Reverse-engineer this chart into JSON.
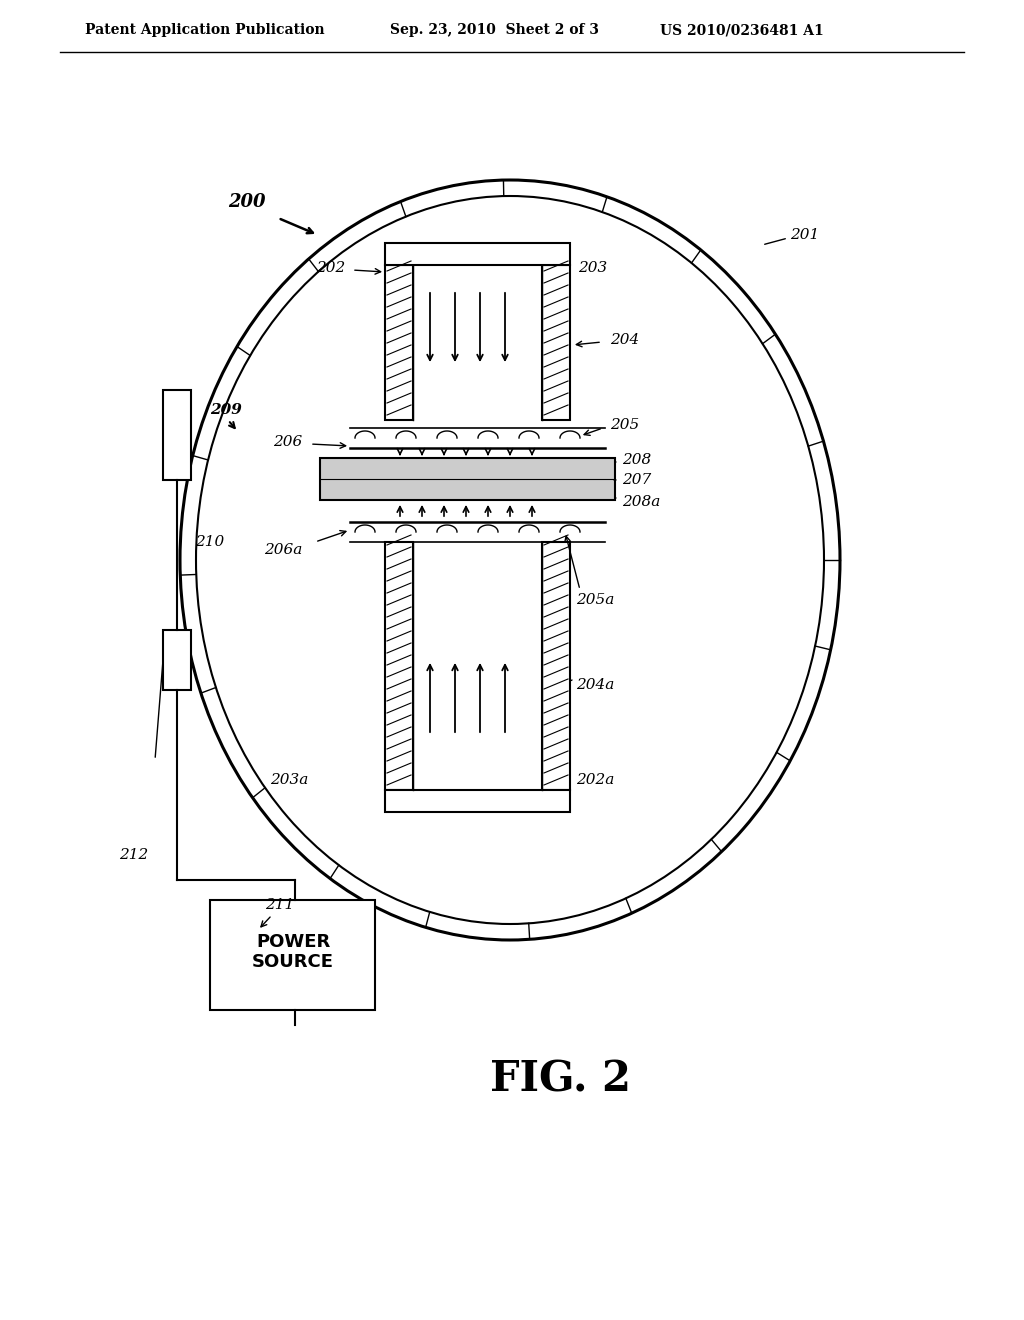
{
  "bg_color": "#ffffff",
  "line_color": "#000000",
  "header_left": "Patent Application Publication",
  "header_mid": "Sep. 23, 2010  Sheet 2 of 3",
  "header_right": "US 2010/0236481 A1",
  "fig_label": "FIG. 2",
  "label_200": "200",
  "label_201": "201",
  "label_202": "202",
  "label_203": "203",
  "label_204": "204",
  "label_205": "205",
  "label_206": "206",
  "label_207": "207",
  "label_208": "208",
  "label_208a": "208a",
  "label_205a": "205a",
  "label_206a": "206a",
  "label_204a": "204a",
  "label_203a": "203a",
  "label_202a": "202a",
  "label_209": "209",
  "label_210": "210",
  "label_211": "211",
  "label_212": "212",
  "power_source": "POWER\nSOURCE"
}
